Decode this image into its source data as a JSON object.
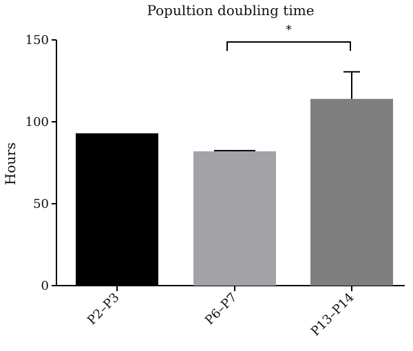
{
  "chart_data": {
    "type": "bar",
    "title": "Popultion doubling time",
    "xlabel": "",
    "ylabel": "Hours",
    "categories": [
      "P2–P3",
      "P6–P7",
      "P13–P14"
    ],
    "values": [
      93,
      82,
      114
    ],
    "errors": [
      0,
      0.4,
      16.5
    ],
    "bar_colors": [
      "#000000",
      "#a3a3a7",
      "#7f7f7f"
    ],
    "ylim": [
      0,
      150
    ],
    "yticks": [
      "0",
      "50",
      "100",
      "150"
    ],
    "grid": false,
    "legend": "none",
    "significance": {
      "between": [
        "P6–P7",
        "P13–P14"
      ],
      "label": "*",
      "level": 147
    }
  }
}
